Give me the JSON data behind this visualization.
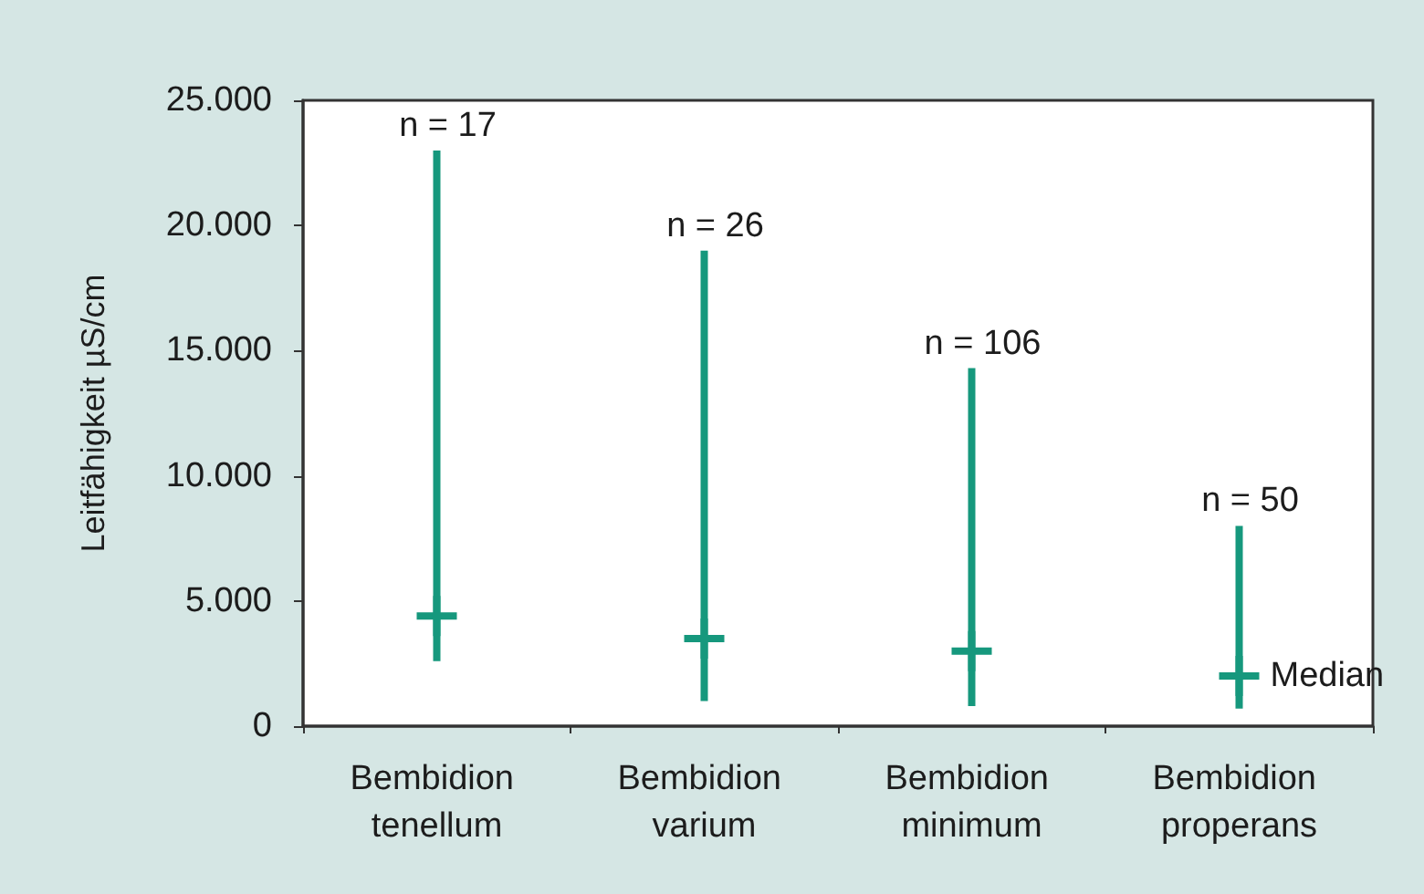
{
  "chart_data": {
    "type": "bar",
    "ylabel": "Leitfähigkeit µS/cm",
    "categories": [
      "Bembidion tenellum",
      "Bembidion varium",
      "Bembidion minimum",
      "Bembidion properans"
    ],
    "ylim": [
      0,
      25000
    ],
    "yticks": [
      0,
      {
        "value": 5000,
        "label": "5.000"
      },
      {
        "value": 10000,
        "label": "10.000"
      },
      {
        "value": 15000,
        "label": "15.000"
      },
      {
        "value": 20000,
        "label": "20.000"
      },
      {
        "value": 25000,
        "label": "25.000"
      }
    ],
    "series": [
      {
        "color": "#16987d",
        "base": [
          2600,
          1000,
          800,
          700
        ],
        "values": [
          20400,
          18000,
          13500,
          7300
        ]
      },
      {
        "type": "scatter",
        "marker": "cross",
        "color": "#16987d",
        "x": [
          "Bembidion tenellum",
          "Bembidion varium",
          "Bembidion minimum",
          "Bembidion properans"
        ],
        "values": [
          4400,
          3500,
          3000,
          2000
        ]
      }
    ],
    "annotations": [
      {
        "text": "n = 17",
        "x": "Bembidion tenellum",
        "y": 23000
      },
      {
        "text": "n = 26",
        "x": "Bembidion varium",
        "y": 19000
      },
      {
        "text": "n = 106",
        "x": "Bembidion minimum",
        "y": 14300
      },
      {
        "text": "n = 50",
        "x": "Bembidion properans",
        "y": 8000
      },
      {
        "text": "Median",
        "x": "Bembidion properans",
        "y": 2000
      }
    ]
  }
}
